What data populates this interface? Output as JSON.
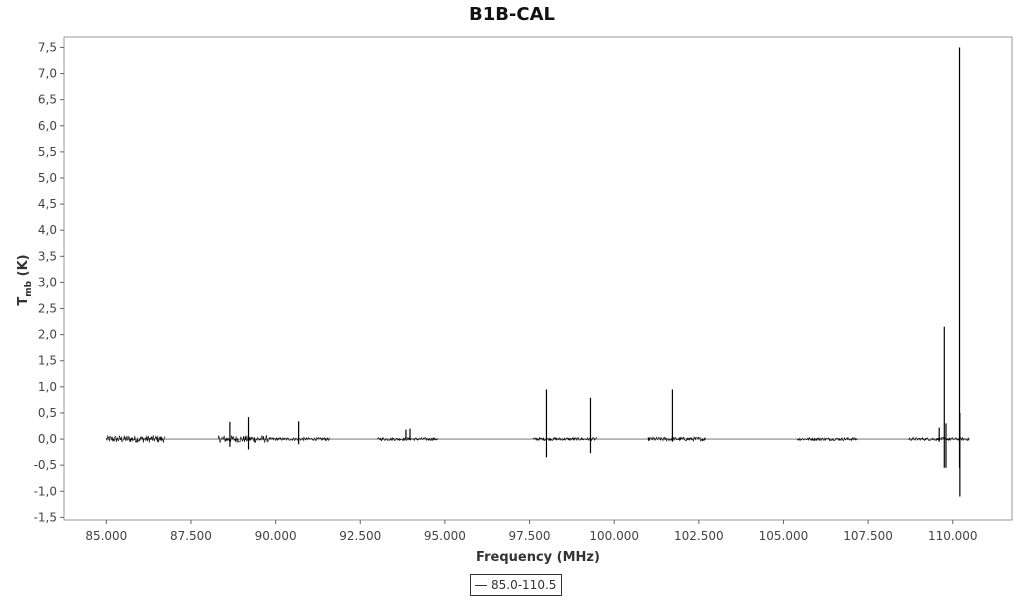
{
  "chart_data": {
    "type": "line",
    "title": "B1B-CAL",
    "xlabel": "Frequency (MHz)",
    "ylabel_main": "T",
    "ylabel_sub": "mb",
    "ylabel_unit": " (K)",
    "xlim": [
      83750,
      111750
    ],
    "ylim": [
      -1.55,
      7.7
    ],
    "x_ticks": [
      85000,
      87500,
      90000,
      92500,
      95000,
      97500,
      100000,
      102500,
      105000,
      107500,
      110000
    ],
    "x_tick_labels": [
      "85.000",
      "87.500",
      "90.000",
      "92.500",
      "95.000",
      "97.500",
      "100.000",
      "102.500",
      "105.000",
      "107.500",
      "110.000"
    ],
    "y_ticks": [
      -1.5,
      -1.0,
      -0.5,
      0.0,
      0.5,
      1.0,
      1.5,
      2.0,
      2.5,
      3.0,
      3.5,
      4.0,
      4.5,
      5.0,
      5.5,
      6.0,
      6.5,
      7.0,
      7.5
    ],
    "y_tick_labels": [
      "-1,5",
      "-1,0",
      "-0,5",
      "0,0",
      "0,5",
      "1,0",
      "1,5",
      "2,0",
      "2,5",
      "3,0",
      "3,5",
      "4,0",
      "4,5",
      "5,0",
      "5,5",
      "6,0",
      "6,5",
      "7,0",
      "7,5"
    ],
    "grid": false,
    "legend_position": "bottom-center",
    "series": [
      {
        "name": "85.0-110.5",
        "color": "#000000",
        "baseline": 0.0,
        "noise_segments": [
          {
            "x0": 85000,
            "x1": 86750,
            "amp": 0.07
          },
          {
            "x0": 88300,
            "x1": 89800,
            "amp": 0.07
          },
          {
            "x0": 89800,
            "x1": 91600,
            "amp": 0.03
          },
          {
            "x0": 93000,
            "x1": 94800,
            "amp": 0.03
          },
          {
            "x0": 97600,
            "x1": 99500,
            "amp": 0.03
          },
          {
            "x0": 101000,
            "x1": 102700,
            "amp": 0.04
          },
          {
            "x0": 105400,
            "x1": 107200,
            "amp": 0.03
          },
          {
            "x0": 108700,
            "x1": 110500,
            "amp": 0.03
          }
        ],
        "peaks": [
          {
            "x": 88650,
            "max": 0.33,
            "min": -0.15
          },
          {
            "x": 89200,
            "max": 0.42,
            "min": -0.2
          },
          {
            "x": 90680,
            "max": 0.34,
            "min": -0.1
          },
          {
            "x": 93850,
            "max": 0.18,
            "min": -0.02
          },
          {
            "x": 93970,
            "max": 0.2,
            "min": -0.02
          },
          {
            "x": 98000,
            "max": 0.95,
            "min": -0.35
          },
          {
            "x": 99300,
            "max": 0.79,
            "min": -0.27
          },
          {
            "x": 101720,
            "max": 0.95,
            "min": -0.05
          },
          {
            "x": 109750,
            "max": 2.15,
            "min": -0.55
          },
          {
            "x": 109800,
            "max": 0.3,
            "min": -0.55
          },
          {
            "x": 109600,
            "max": 0.22,
            "min": -0.05
          },
          {
            "x": 110200,
            "max": 7.5,
            "min": -0.55
          },
          {
            "x": 110210,
            "max": 0.5,
            "min": -1.1
          }
        ]
      }
    ]
  }
}
